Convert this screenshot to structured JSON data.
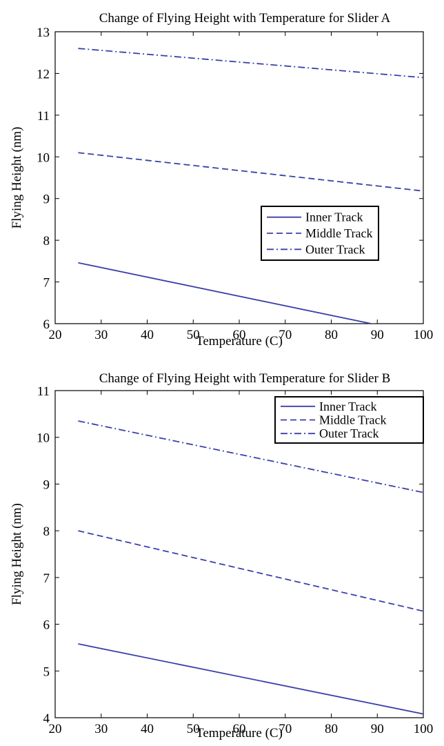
{
  "chart_data": [
    {
      "type": "line",
      "title": "Change of Flying Height with Temperature for Slider A",
      "xlabel": "Temperature (C)",
      "ylabel": "Flying Height (nm)",
      "xlim": [
        20,
        100
      ],
      "ylim": [
        6,
        13
      ],
      "xticks": [
        "20",
        "30",
        "40",
        "50",
        "60",
        "70",
        "80",
        "90",
        "100"
      ],
      "yticks": [
        "6",
        "7",
        "8",
        "9",
        "10",
        "11",
        "12",
        "13"
      ],
      "grid": false,
      "legend_position": "center-right",
      "series": [
        {
          "name": "Inner Track",
          "style": "solid",
          "color": "#3a3fa8",
          "x": [
            25,
            100
          ],
          "y": [
            7.46,
            5.74
          ]
        },
        {
          "name": "Middle Track",
          "style": "dashed",
          "color": "#3a3fa8",
          "x": [
            25,
            100
          ],
          "y": [
            10.1,
            9.18
          ]
        },
        {
          "name": "Outer Track",
          "style": "dashdot",
          "color": "#3a3fa8",
          "x": [
            25,
            100
          ],
          "y": [
            12.6,
            11.9
          ]
        }
      ]
    },
    {
      "type": "line",
      "title": "Change of Flying Height with Temperature for Slider B",
      "xlabel": "Temperature (C)",
      "ylabel": "Flying Height (nm)",
      "xlim": [
        20,
        100
      ],
      "ylim": [
        4,
        11
      ],
      "xticks": [
        "20",
        "30",
        "40",
        "50",
        "60",
        "70",
        "80",
        "90",
        "100"
      ],
      "yticks": [
        "4",
        "5",
        "6",
        "7",
        "8",
        "9",
        "10",
        "11"
      ],
      "grid": false,
      "legend_position": "top-right",
      "series": [
        {
          "name": "Inner Track",
          "style": "solid",
          "color": "#3a3fa8",
          "x": [
            25,
            100
          ],
          "y": [
            5.58,
            4.08
          ]
        },
        {
          "name": "Middle Track",
          "style": "dashed",
          "color": "#3a3fa8",
          "x": [
            25,
            100
          ],
          "y": [
            8.0,
            6.28
          ]
        },
        {
          "name": "Outer Track",
          "style": "dashdot",
          "color": "#3a3fa8",
          "x": [
            25,
            100
          ],
          "y": [
            10.35,
            8.82
          ]
        }
      ]
    }
  ]
}
